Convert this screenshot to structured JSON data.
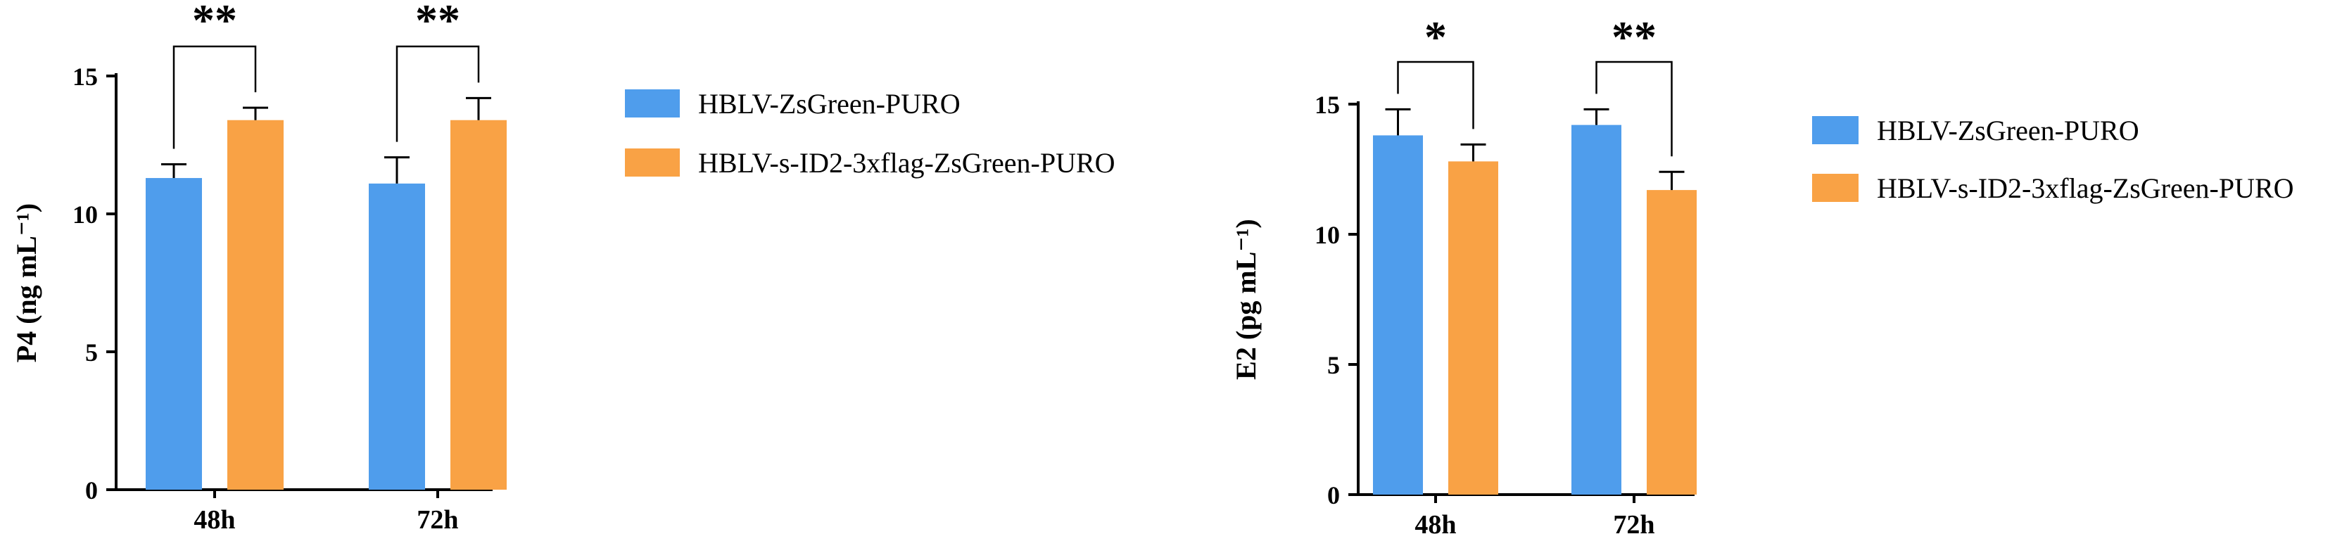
{
  "chart_data": [
    {
      "type": "bar",
      "categories": [
        "48h",
        "72h"
      ],
      "ylabel": "P4 (ng mL⁻¹)",
      "xlabel": "",
      "ylim": [
        0,
        15
      ],
      "yticks": [
        0,
        5,
        10,
        15
      ],
      "series": [
        {
          "name": "HBLV-ZsGreen-PURO",
          "color": "#4f9dec",
          "values": [
            11.3,
            11.1
          ],
          "errors": [
            0.5,
            0.95
          ]
        },
        {
          "name": "HBLV-s-ID2-3xflag-ZsGreen-PURO",
          "color": "#f9a245",
          "values": [
            13.4,
            13.4
          ],
          "errors": [
            0.45,
            0.8
          ]
        }
      ],
      "significance": [
        "**",
        "**"
      ],
      "legend_position": "right"
    },
    {
      "type": "bar",
      "categories": [
        "48h",
        "72h"
      ],
      "ylabel": "E2 (pg mL⁻¹)",
      "xlabel": "",
      "ylim": [
        0,
        15
      ],
      "yticks": [
        0,
        5,
        10,
        15
      ],
      "series": [
        {
          "name": "HBLV-ZsGreen-PURO",
          "color": "#4f9dec",
          "values": [
            13.8,
            14.2
          ],
          "errors": [
            1.0,
            0.6
          ]
        },
        {
          "name": "HBLV-s-ID2-3xflag-ZsGreen-PURO",
          "color": "#f9a245",
          "values": [
            12.8,
            11.7
          ],
          "errors": [
            0.65,
            0.7
          ]
        }
      ],
      "significance": [
        "*",
        "**"
      ],
      "legend_position": "right"
    }
  ]
}
